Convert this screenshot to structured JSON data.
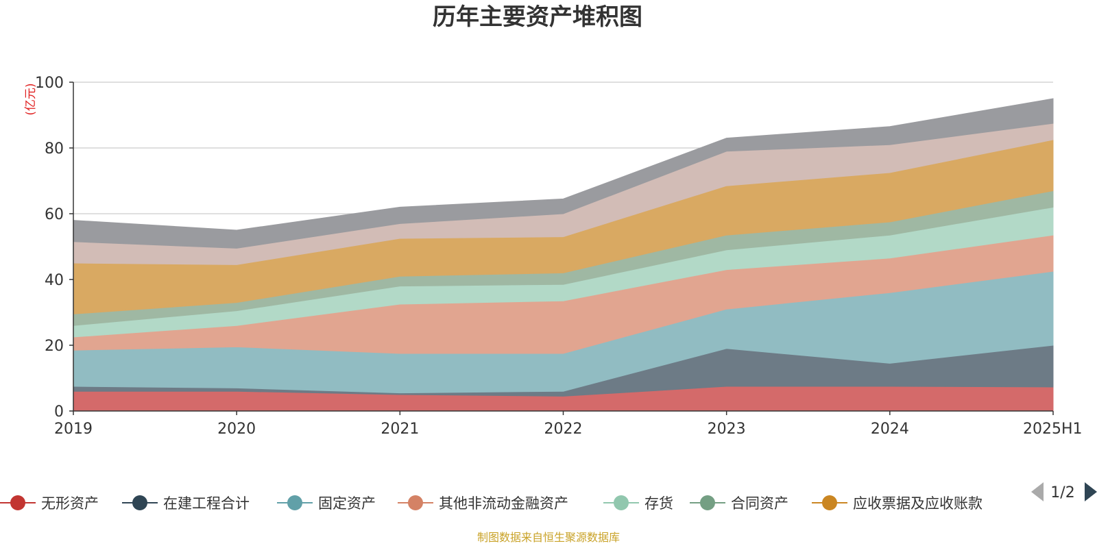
{
  "chart_data": {
    "type": "area",
    "stacked": true,
    "title": "历年主要资产堆积图",
    "unit_label": "(亿元)",
    "categories": [
      "2019",
      "2020",
      "2021",
      "2022",
      "2023",
      "2024",
      "2025H1"
    ],
    "ylim": [
      0,
      100
    ],
    "yticks": [
      0,
      20,
      40,
      60,
      80,
      100
    ],
    "grid": true,
    "series": [
      {
        "name": "无形资产",
        "color": "#d46a6a",
        "marker_color": "#c23531",
        "values": [
          6.0,
          6.0,
          5.0,
          4.5,
          7.5,
          7.5,
          7.3
        ]
      },
      {
        "name": "在建工程合计",
        "color": "#6d7b86",
        "marker_color": "#2f4554",
        "values": [
          1.5,
          1.0,
          0.5,
          1.5,
          11.5,
          7.0,
          12.7
        ]
      },
      {
        "name": "固定资产",
        "color": "#91bcc2",
        "marker_color": "#61a0a8",
        "values": [
          11.0,
          12.5,
          12.0,
          11.5,
          12.0,
          21.5,
          22.5
        ]
      },
      {
        "name": "其他非流动金融资产",
        "color": "#e1a590",
        "marker_color": "#d48265",
        "values": [
          4.0,
          6.5,
          15.0,
          16.0,
          12.0,
          10.5,
          11.0
        ]
      },
      {
        "name": "存货",
        "color": "#b2d9c7",
        "marker_color": "#91c7ae",
        "values": [
          3.5,
          4.5,
          5.5,
          5.0,
          6.0,
          7.0,
          8.5
        ]
      },
      {
        "name": "合同资产",
        "color": "#9fb8a3",
        "marker_color": "#749f83",
        "values": [
          3.5,
          2.5,
          3.0,
          3.5,
          4.5,
          4.0,
          5.0
        ]
      },
      {
        "name": "应收票据及应收账款",
        "color": "#d9a962",
        "marker_color": "#ca8622",
        "values": [
          15.5,
          11.5,
          11.5,
          11.0,
          15.0,
          15.0,
          15.5
        ]
      },
      {
        "name": "",
        "color": "#d2bcb6",
        "marker_color": "#bda29a",
        "values": [
          6.5,
          5.0,
          4.5,
          7.0,
          10.5,
          8.5,
          5.0
        ]
      },
      {
        "name": "",
        "color": "#9a9b9f",
        "marker_color": "#6e7074",
        "values": [
          6.5,
          5.5,
          5.0,
          4.5,
          4.0,
          5.5,
          7.5
        ]
      }
    ]
  },
  "legend": {
    "page_indicator": "1/2"
  },
  "source_note": "制图数据来自恒生聚源数据库"
}
